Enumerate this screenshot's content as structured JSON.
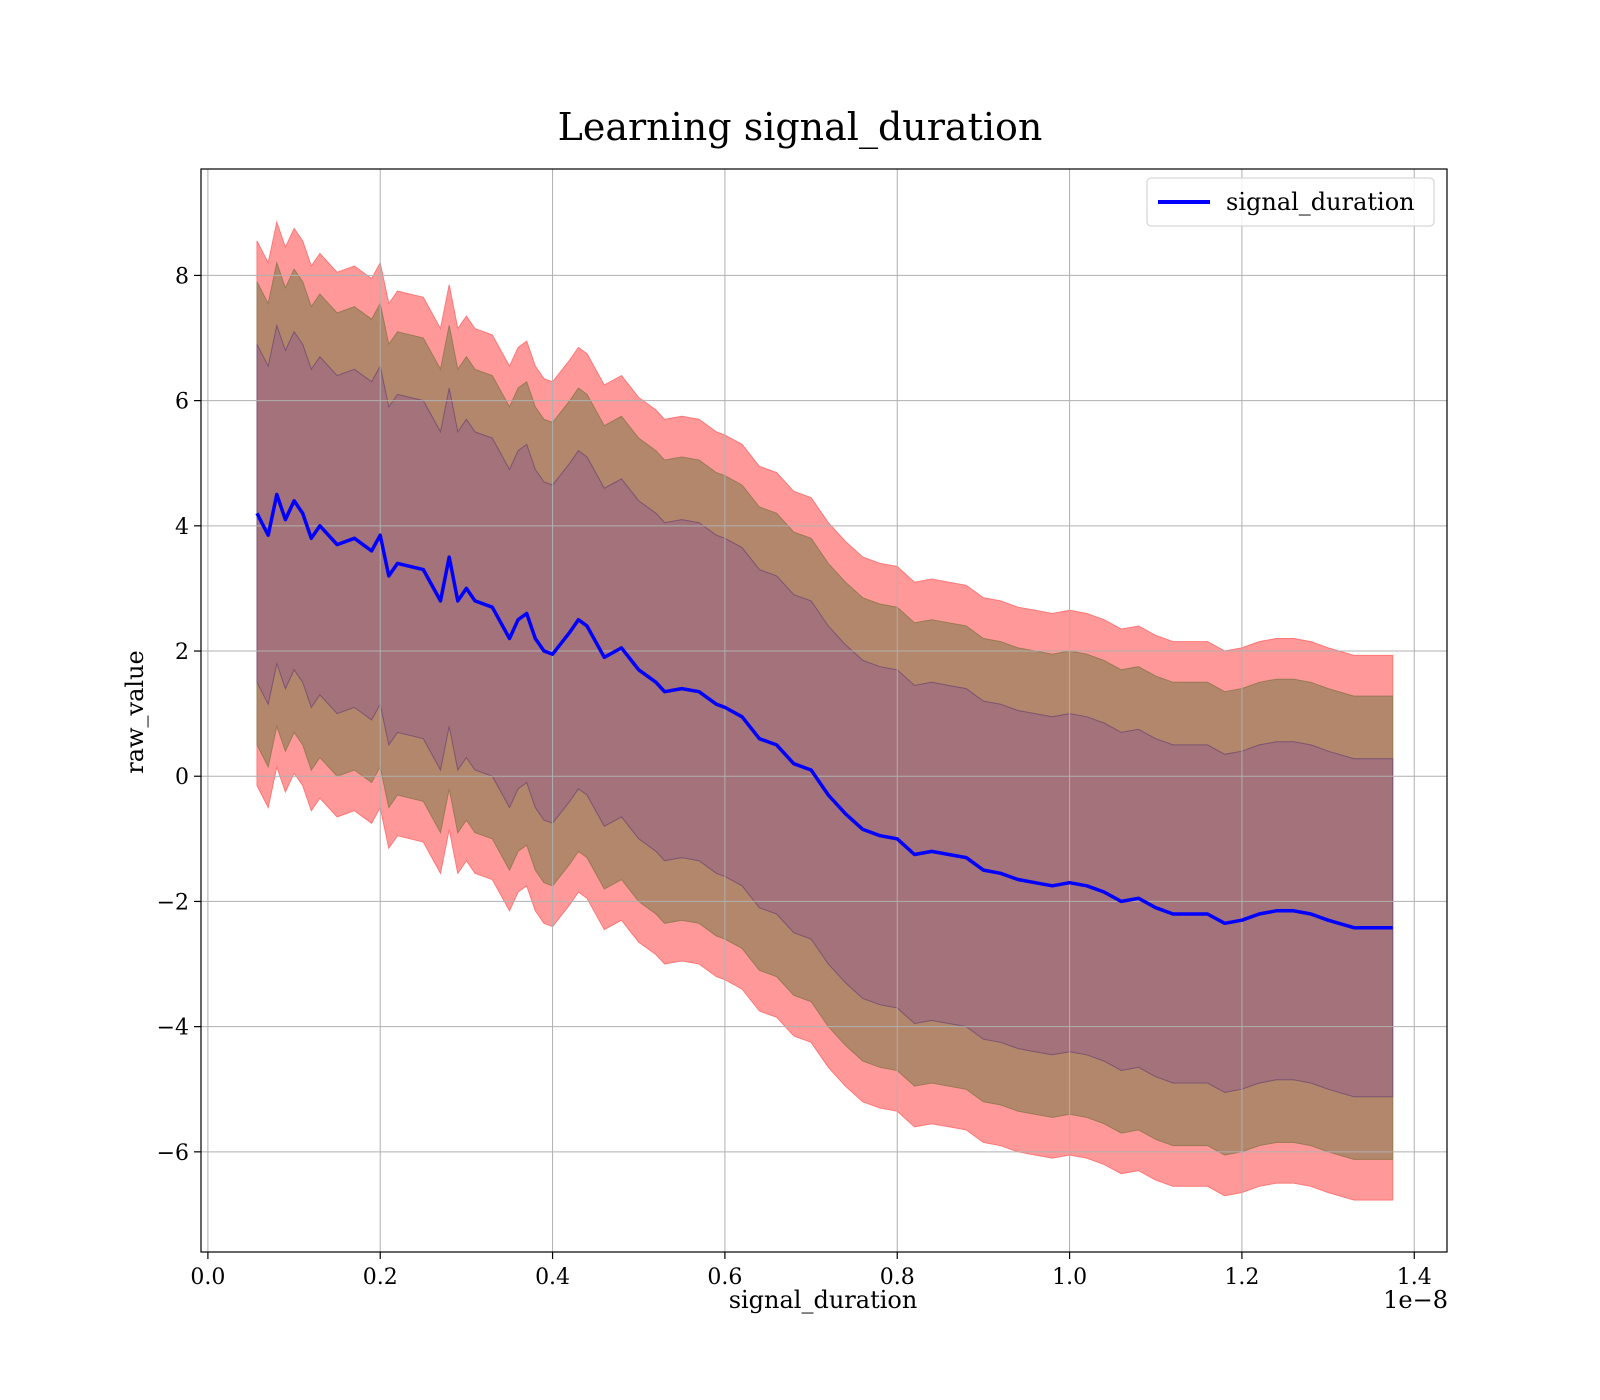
{
  "chart_data": {
    "type": "line",
    "title": "Learning signal_duration",
    "xlabel": "signal_duration",
    "ylabel": "raw_value",
    "x_offset_label": "1e−8",
    "xlim": [
      -0.008,
      1.438
    ],
    "ylim": [
      -7.6,
      9.7
    ],
    "x_ticks": [
      0.0,
      0.2,
      0.4,
      0.6,
      0.8,
      1.0,
      1.2,
      1.4
    ],
    "x_tick_labels": [
      "0.0",
      "0.2",
      "0.4",
      "0.6",
      "0.8",
      "1.0",
      "1.2",
      "1.4"
    ],
    "y_ticks": [
      -6,
      -4,
      -2,
      0,
      2,
      4,
      6,
      8
    ],
    "y_tick_labels": [
      "−6",
      "−4",
      "−2",
      "0",
      "2",
      "4",
      "6",
      "8"
    ],
    "grid": true,
    "legend_position": "top-right",
    "colors": {
      "line": "#0000ff",
      "outer_band": "#ff9999",
      "middle_band": "#b2876b",
      "inner_band": "#a3727a"
    },
    "series": [
      {
        "name": "signal_duration",
        "x": [
          0.057,
          0.07,
          0.08,
          0.09,
          0.1,
          0.11,
          0.12,
          0.13,
          0.15,
          0.17,
          0.19,
          0.2,
          0.21,
          0.22,
          0.25,
          0.27,
          0.28,
          0.29,
          0.3,
          0.31,
          0.33,
          0.35,
          0.36,
          0.37,
          0.38,
          0.39,
          0.4,
          0.42,
          0.43,
          0.44,
          0.46,
          0.48,
          0.5,
          0.52,
          0.53,
          0.55,
          0.57,
          0.59,
          0.6,
          0.62,
          0.64,
          0.66,
          0.68,
          0.7,
          0.72,
          0.74,
          0.76,
          0.78,
          0.8,
          0.82,
          0.84,
          0.86,
          0.88,
          0.9,
          0.92,
          0.94,
          0.96,
          0.98,
          1.0,
          1.02,
          1.04,
          1.06,
          1.08,
          1.1,
          1.12,
          1.14,
          1.16,
          1.18,
          1.2,
          1.22,
          1.24,
          1.26,
          1.28,
          1.3,
          1.33,
          1.375
        ],
        "y": [
          4.2,
          3.85,
          4.5,
          4.1,
          4.4,
          4.2,
          3.8,
          4.0,
          3.7,
          3.8,
          3.6,
          3.85,
          3.2,
          3.4,
          3.3,
          2.8,
          3.5,
          2.8,
          3.0,
          2.8,
          2.7,
          2.2,
          2.5,
          2.6,
          2.2,
          2.0,
          1.95,
          2.3,
          2.5,
          2.4,
          1.9,
          2.05,
          1.7,
          1.5,
          1.35,
          1.4,
          1.35,
          1.15,
          1.1,
          0.95,
          0.6,
          0.5,
          0.2,
          0.1,
          -0.3,
          -0.6,
          -0.85,
          -0.95,
          -1.0,
          -1.25,
          -1.2,
          -1.25,
          -1.3,
          -1.5,
          -1.55,
          -1.65,
          -1.7,
          -1.75,
          -1.7,
          -1.75,
          -1.85,
          -2.0,
          -1.95,
          -2.1,
          -2.2,
          -2.2,
          -2.2,
          -2.35,
          -2.3,
          -2.2,
          -2.15,
          -2.15,
          -2.2,
          -2.3,
          -2.42,
          -2.42
        ],
        "inner_band_halfwidth": 2.7,
        "middle_band_halfwidth": 3.7,
        "outer_band_halfwidth": 4.35
      }
    ]
  }
}
